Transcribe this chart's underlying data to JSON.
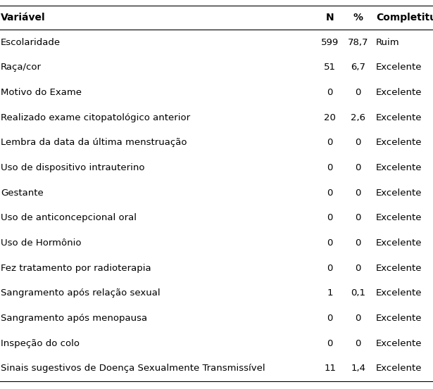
{
  "columns": [
    "Variável",
    "N",
    "%",
    "Completitude"
  ],
  "rows": [
    [
      "Escolaridade",
      "599",
      "78,7",
      "Ruim"
    ],
    [
      "Raça/cor",
      "51",
      "6,7",
      "Excelente"
    ],
    [
      "Motivo do Exame",
      "0",
      "0",
      "Excelente"
    ],
    [
      "Realizado exame citopatológico anterior",
      "20",
      "2,6",
      "Excelente"
    ],
    [
      "Lembra da data da última menstruação",
      "0",
      "0",
      "Excelente"
    ],
    [
      "Uso de dispositivo intrauterino",
      "0",
      "0",
      "Excelente"
    ],
    [
      "Gestante",
      "0",
      "0",
      "Excelente"
    ],
    [
      "Uso de anticoncepcional oral",
      "0",
      "0",
      "Excelente"
    ],
    [
      "Uso de Hormônio",
      "0",
      "0",
      "Excelente"
    ],
    [
      "Fez tratamento por radioterapia",
      "0",
      "0",
      "Excelente"
    ],
    [
      "Sangramento após relação sexual",
      "1",
      "0,1",
      "Excelente"
    ],
    [
      "Sangramento após menopausa",
      "0",
      "0",
      "Excelente"
    ],
    [
      "Inspeção do colo",
      "0",
      "0",
      "Excelente"
    ],
    [
      "Sinais sugestivos de Doença Sexualmente Transmissível",
      "11",
      "1,4",
      "Excelente"
    ]
  ],
  "bg_color": "#ffffff",
  "text_color": "#000000",
  "line_color": "#000000",
  "header_fontsize": 10,
  "row_fontsize": 9.5,
  "fig_width": 6.15,
  "fig_height": 5.53,
  "dpi": 100
}
